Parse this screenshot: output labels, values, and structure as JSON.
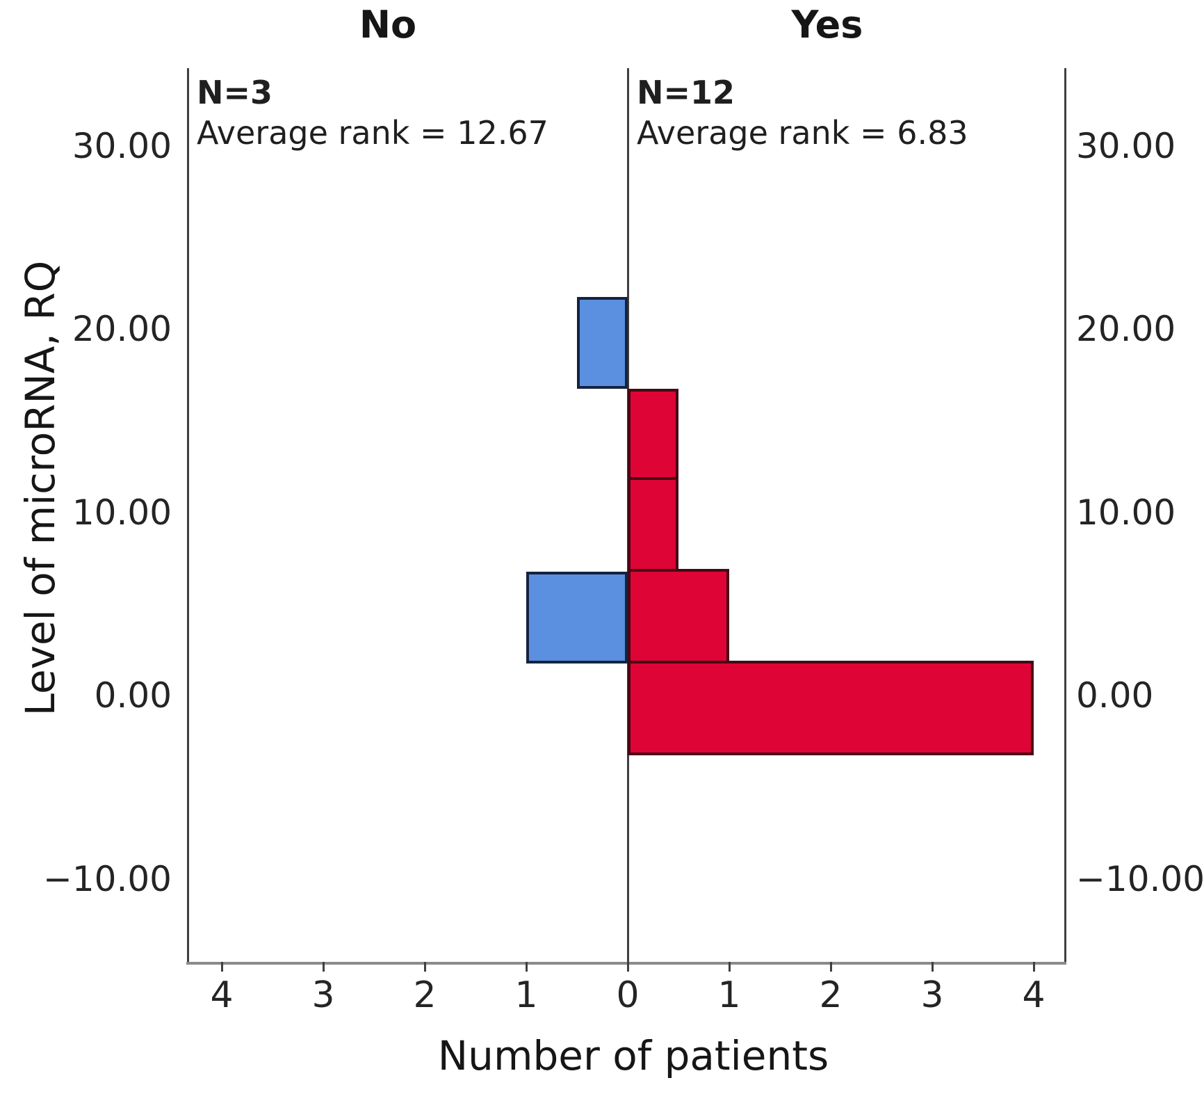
{
  "chart_data": {
    "type": "bar",
    "variant": "back-to-back-horizontal-histogram",
    "xlabel": "Number of patients",
    "ylabel": "Level of microRNA, RQ",
    "y_axis": {
      "ticks": [
        {
          "v": 30,
          "label": "30.00"
        },
        {
          "v": 20,
          "label": "20.00"
        },
        {
          "v": 10,
          "label": "10.00"
        },
        {
          "v": 0,
          "label": "0.00"
        },
        {
          "v": -10,
          "label": "−10.00"
        }
      ],
      "range_shown": [
        -13.4,
        34.2
      ],
      "grid": false
    },
    "x_axis": {
      "left_ticks": [
        {
          "v": 4,
          "label": "4"
        },
        {
          "v": 3,
          "label": "3"
        },
        {
          "v": 2,
          "label": "2"
        },
        {
          "v": 1,
          "label": "1"
        }
      ],
      "zero_tick": {
        "v": 0,
        "label": "0"
      },
      "right_ticks": [
        {
          "v": 1,
          "label": "1"
        },
        {
          "v": 2,
          "label": "2"
        },
        {
          "v": 3,
          "label": "3"
        },
        {
          "v": 4,
          "label": "4"
        }
      ],
      "max_each_side": 4.35
    },
    "panels": [
      {
        "id": "no",
        "header": "No",
        "n_label": "N=3",
        "avg_rank_label": "Average rank = 12.67",
        "side": "left",
        "fill": "#5b90e0",
        "border": "#15233f",
        "bars": [
          {
            "bin_low": 16.75,
            "bin_high": 21.75,
            "patients": 0.5
          },
          {
            "bin_low": 1.75,
            "bin_high": 6.75,
            "patients": 1
          }
        ]
      },
      {
        "id": "yes",
        "header": "Yes",
        "n_label": "N=12",
        "avg_rank_label": "Average rank = 6.83",
        "side": "right",
        "fill": "#de0436",
        "border": "#470815",
        "bars": [
          {
            "bin_low": 11.75,
            "bin_high": 16.75,
            "patients": 0.5
          },
          {
            "bin_low": 6.75,
            "bin_high": 11.75,
            "patients": 0.5
          },
          {
            "bin_low": 1.75,
            "bin_high": 6.75,
            "patients": 1
          },
          {
            "bin_low": -3.25,
            "bin_high": 1.75,
            "patients": 4
          }
        ]
      }
    ],
    "colors": {
      "axis_line": "#3f3f3f",
      "baseline": "#8a8a8a",
      "text": "#1c1c1c",
      "background": "#ffffff"
    }
  }
}
